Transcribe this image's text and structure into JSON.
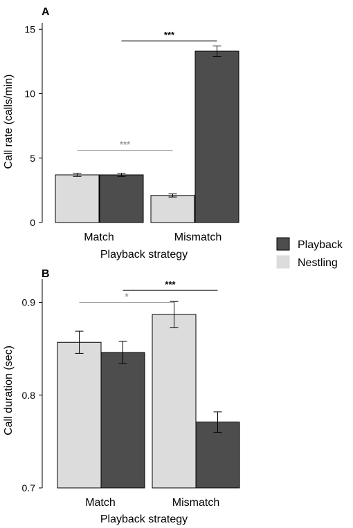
{
  "colors": {
    "playback": "#4d4d4d",
    "nestling": "#dcdcdc",
    "axis": "#000000",
    "sig_dark": "#000000",
    "sig_light": "#9a9a9a"
  },
  "legend": {
    "placement": "right",
    "items": [
      {
        "label": "Playback",
        "color": "#4d4d4d"
      },
      {
        "label": "Nestling",
        "color": "#dcdcdc"
      }
    ]
  },
  "chart_data": [
    {
      "type": "bar",
      "panel_label": "A",
      "categories": [
        "Match",
        "Mismatch"
      ],
      "xlabel": "Playback strategy",
      "ylabel": "Call rate (calls/min)",
      "ylim": [
        0,
        15.5
      ],
      "yticks": [
        0,
        5,
        10,
        15
      ],
      "ytick_labels": [
        "0",
        "5",
        "10",
        "15"
      ],
      "grid": false,
      "series": [
        {
          "name": "Nestling",
          "values": [
            3.7,
            2.1
          ],
          "errors": [
            0.12,
            0.12
          ]
        },
        {
          "name": "Playback",
          "values": [
            3.7,
            13.3
          ],
          "errors": [
            0.12,
            0.4
          ]
        }
      ],
      "significance": [
        {
          "label": "***",
          "y": 14.1,
          "from": [
            0,
            1
          ],
          "to": [
            1,
            1
          ],
          "style": "dark"
        },
        {
          "label": "***",
          "y": 5.6,
          "from": [
            0,
            0
          ],
          "to": [
            1,
            0
          ],
          "style": "light"
        }
      ]
    },
    {
      "type": "bar",
      "panel_label": "B",
      "categories": [
        "Match",
        "Mismatch"
      ],
      "xlabel": "Playback strategy",
      "ylabel": "Call duration (sec)",
      "ylim": [
        0.7,
        0.925
      ],
      "yticks": [
        0.7,
        0.8,
        0.9
      ],
      "ytick_labels": [
        "0.7",
        "0.8",
        "0.9"
      ],
      "grid": false,
      "series": [
        {
          "name": "Nestling",
          "values": [
            0.857,
            0.887
          ],
          "errors": [
            0.012,
            0.014
          ]
        },
        {
          "name": "Playback",
          "values": [
            0.846,
            0.771
          ],
          "errors": [
            0.012,
            0.011
          ]
        }
      ],
      "significance": [
        {
          "label": "***",
          "y": 0.913,
          "from": [
            0,
            1
          ],
          "to": [
            1,
            1
          ],
          "style": "dark"
        },
        {
          "label": "*",
          "y": 0.9,
          "from": [
            0,
            0
          ],
          "to": [
            1,
            0
          ],
          "style": "light"
        }
      ]
    }
  ]
}
